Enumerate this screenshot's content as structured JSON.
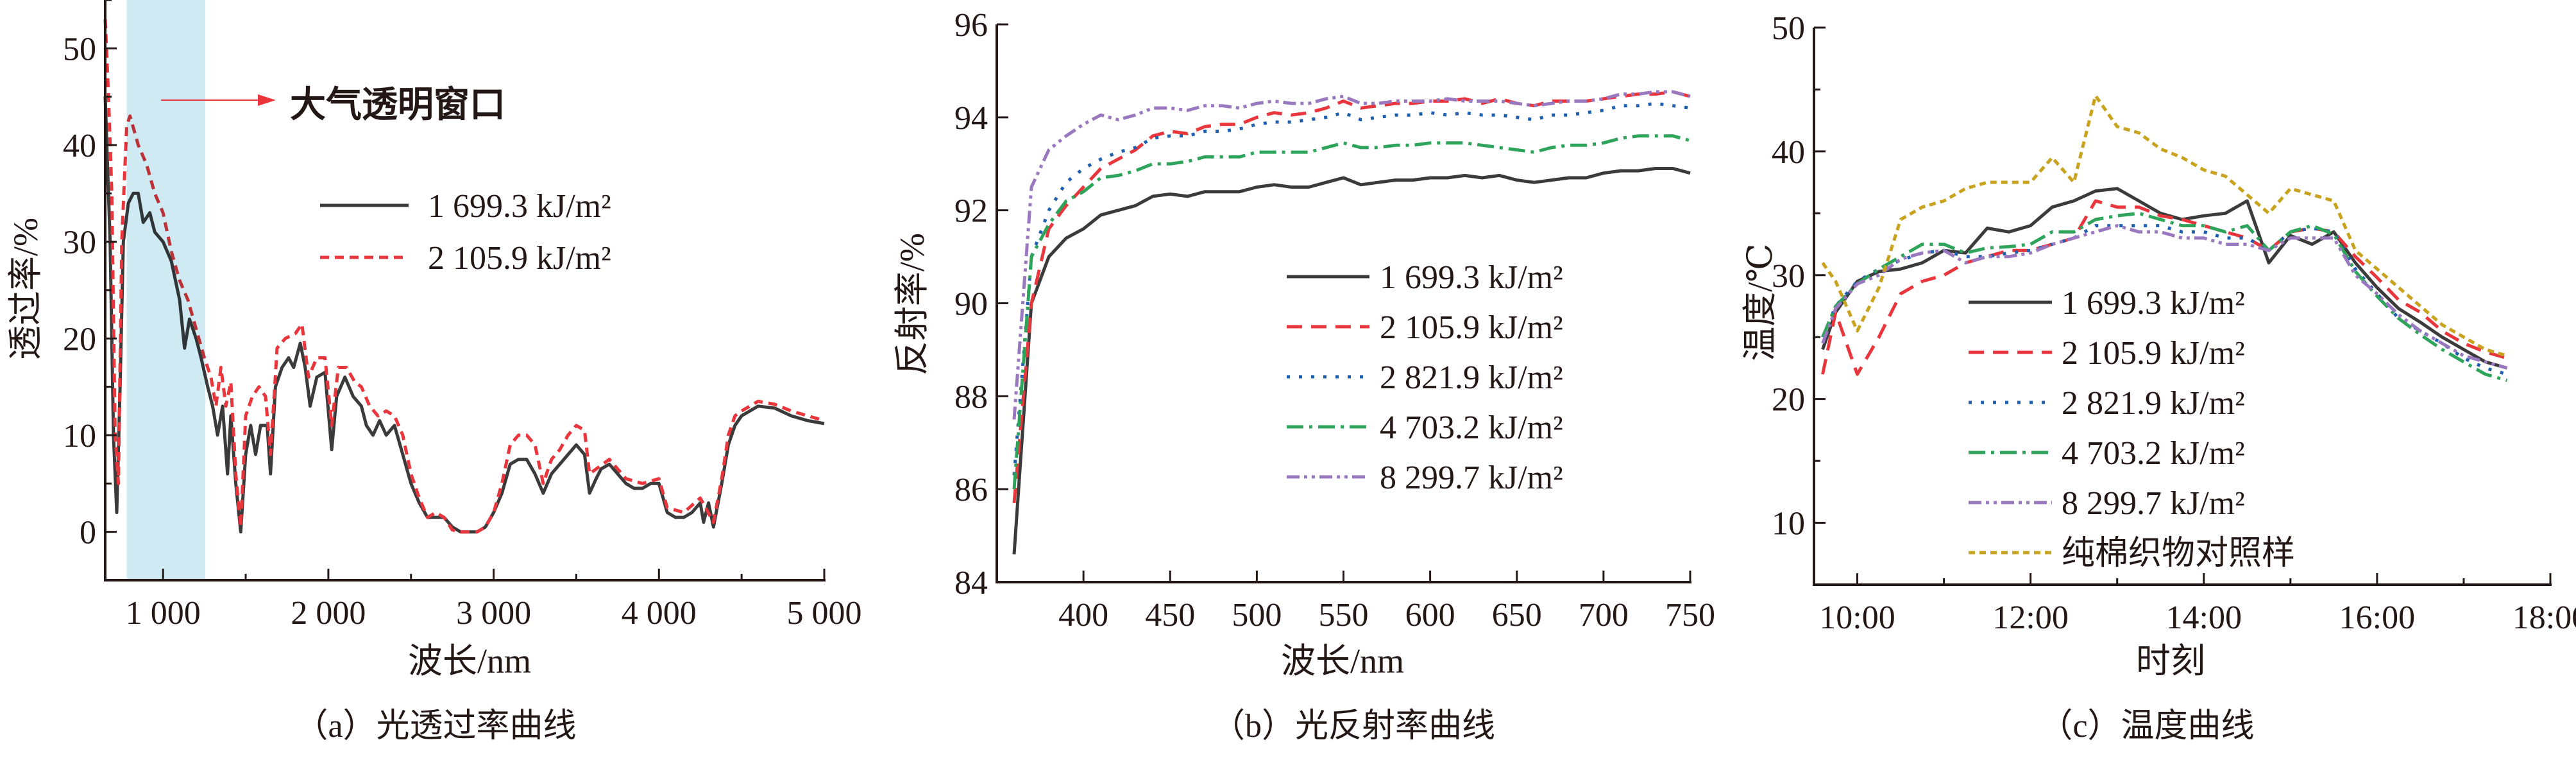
{
  "chart_data": [
    {
      "type": "line",
      "caption": "（a）光透过率曲线",
      "xlabel": "波长/nm",
      "ylabel": "透过率/%",
      "xlim": [
        650,
        5000
      ],
      "ylim": [
        -5,
        55
      ],
      "xticks": [
        1000,
        2000,
        3000,
        4000,
        5000
      ],
      "xtick_labels": [
        "1 000",
        "2 000",
        "3 000",
        "4 000",
        "5 000"
      ],
      "yticks": [
        0,
        10,
        20,
        30,
        40,
        50
      ],
      "ytick_labels": [
        "0",
        "10",
        "20",
        "30",
        "40",
        "50"
      ],
      "highlight_band": {
        "range": [
          780,
          1256
        ],
        "label": "大气透明窗口",
        "color": "#cfeaf2"
      },
      "legend_position": "center-right",
      "series": [
        {
          "name": "1 699.3 kJ/m²",
          "color": "#3b3b3b",
          "style": "solid",
          "x": [
            650,
            680,
            700,
            720,
            740,
            760,
            790,
            820,
            850,
            880,
            920,
            950,
            1000,
            1050,
            1100,
            1130,
            1160,
            1200,
            1230,
            1270,
            1300,
            1330,
            1360,
            1390,
            1410,
            1440,
            1470,
            1500,
            1530,
            1560,
            1590,
            1630,
            1650,
            1680,
            1720,
            1760,
            1790,
            1830,
            1860,
            1890,
            1930,
            1980,
            2020,
            2050,
            2100,
            2150,
            2200,
            2230,
            2270,
            2310,
            2350,
            2400,
            2450,
            2500,
            2550,
            2600,
            2650,
            2700,
            2750,
            2800,
            2900,
            2950,
            3000,
            3050,
            3100,
            3150,
            3200,
            3250,
            3300,
            3350,
            3400,
            3450,
            3500,
            3550,
            3580,
            3620,
            3650,
            3700,
            3750,
            3800,
            3850,
            3900,
            3950,
            4000,
            4050,
            4100,
            4150,
            4200,
            4250,
            4270,
            4300,
            4330,
            4380,
            4420,
            4460,
            4500,
            4600,
            4700,
            4800,
            4900,
            5000
          ],
          "y": [
            45,
            30,
            10,
            2,
            15,
            30,
            34,
            35,
            35,
            32,
            33,
            31,
            30,
            28,
            24,
            19,
            22,
            20,
            18,
            15,
            13,
            10,
            13,
            6,
            12,
            5,
            0,
            8,
            11,
            8,
            11,
            11,
            6,
            15,
            17,
            18,
            17,
            19.5,
            17,
            13,
            16,
            16.5,
            8.5,
            14,
            16,
            14,
            13,
            11,
            10,
            11.5,
            10,
            11,
            8,
            5,
            3,
            1.5,
            1.5,
            1.5,
            0.5,
            0,
            0,
            0.5,
            2,
            4,
            7,
            7.5,
            7.5,
            6,
            4,
            6,
            7,
            8,
            9,
            8,
            4,
            5.5,
            6.5,
            7,
            6,
            5,
            4.5,
            4.5,
            5,
            5,
            2,
            1.5,
            1.5,
            2,
            3,
            1,
            3,
            0.5,
            5,
            9,
            11,
            12,
            13,
            12.8,
            12,
            11.5,
            11.2
          ]
        },
        {
          "name": "2 105.9 kJ/m²",
          "color": "#e8363c",
          "style": "dashed",
          "x": [
            650,
            670,
            690,
            710,
            730,
            750,
            780,
            800,
            850,
            900,
            950,
            1000,
            1050,
            1100,
            1150,
            1200,
            1250,
            1290,
            1320,
            1350,
            1380,
            1410,
            1440,
            1470,
            1500,
            1540,
            1580,
            1620,
            1650,
            1690,
            1740,
            1800,
            1840,
            1880,
            1930,
            1980,
            2020,
            2060,
            2110,
            2160,
            2200,
            2250,
            2300,
            2350,
            2400,
            2450,
            2500,
            2550,
            2600,
            2650,
            2700,
            2750,
            2800,
            2900,
            2950,
            3000,
            3050,
            3100,
            3150,
            3200,
            3250,
            3300,
            3350,
            3400,
            3450,
            3500,
            3550,
            3580,
            3620,
            3700,
            3800,
            3900,
            4000,
            4050,
            4150,
            4250,
            4330,
            4380,
            4420,
            4460,
            4500,
            4600,
            4700,
            4800,
            4900,
            5000
          ],
          "y": [
            53,
            45,
            35,
            10,
            5,
            30,
            42,
            43,
            40,
            38,
            35,
            33,
            29,
            26,
            24,
            21,
            18,
            16,
            13,
            17,
            13,
            15.5,
            6,
            0.5,
            12,
            14,
            15,
            14,
            8,
            19,
            20,
            20.5,
            21.5,
            16,
            18,
            18,
            11,
            17,
            17,
            15.5,
            15,
            13,
            12,
            12.5,
            12,
            10,
            6,
            3.5,
            1.5,
            2,
            1.5,
            0.2,
            0,
            0,
            0.5,
            2,
            5,
            9,
            10,
            10,
            9,
            5,
            7.5,
            8.5,
            10,
            11,
            10.5,
            6,
            6.5,
            7.5,
            5.5,
            5,
            5.5,
            2.5,
            2,
            3.5,
            1,
            5.5,
            10,
            12,
            12.5,
            13.5,
            13.2,
            12.5,
            12,
            11.5
          ]
        }
      ]
    },
    {
      "type": "line",
      "caption": "（b）光反射率曲线",
      "xlabel": "波长/nm",
      "ylabel": "反射率/%",
      "xlim": [
        350,
        750
      ],
      "ylim": [
        84,
        96
      ],
      "xticks": [
        400,
        450,
        500,
        550,
        600,
        650,
        700,
        750
      ],
      "xtick_labels": [
        "400",
        "450",
        "500",
        "550",
        "600",
        "650",
        "700",
        "750"
      ],
      "yticks": [
        84,
        86,
        88,
        90,
        92,
        94,
        96
      ],
      "ytick_labels": [
        "84",
        "86",
        "88",
        "90",
        "92",
        "94",
        "96"
      ],
      "legend_position": "center-right",
      "x": [
        360,
        370,
        380,
        390,
        400,
        410,
        420,
        430,
        440,
        450,
        460,
        470,
        480,
        490,
        500,
        510,
        520,
        530,
        540,
        550,
        560,
        570,
        580,
        590,
        600,
        610,
        620,
        630,
        640,
        650,
        660,
        670,
        680,
        690,
        700,
        710,
        720,
        730,
        740,
        750
      ],
      "series": [
        {
          "name": "1 699.3 kJ/m²",
          "color": "#3b3b3b",
          "style": "solid",
          "y": [
            84.6,
            90,
            91,
            91.4,
            91.6,
            91.9,
            92,
            92.1,
            92.3,
            92.35,
            92.3,
            92.4,
            92.4,
            92.4,
            92.5,
            92.55,
            92.5,
            92.5,
            92.6,
            92.7,
            92.55,
            92.6,
            92.65,
            92.65,
            92.7,
            92.7,
            92.75,
            92.7,
            92.75,
            92.65,
            92.6,
            92.65,
            92.7,
            92.7,
            92.8,
            92.85,
            92.85,
            92.9,
            92.9,
            92.8
          ]
        },
        {
          "name": "2 105.9 kJ/m²",
          "color": "#e8363c",
          "style": "dashed",
          "y": [
            85.7,
            90,
            91.6,
            92.1,
            92.5,
            92.9,
            93.1,
            93.3,
            93.6,
            93.7,
            93.65,
            93.8,
            93.85,
            93.85,
            94,
            94.1,
            94.05,
            94.1,
            94.2,
            94.35,
            94.2,
            94.25,
            94.3,
            94.3,
            94.35,
            94.35,
            94.4,
            94.3,
            94.4,
            94.3,
            94.25,
            94.35,
            94.35,
            94.35,
            94.4,
            94.45,
            94.5,
            94.5,
            94.55,
            94.45
          ]
        },
        {
          "name": "2 821.9 kJ/m²",
          "color": "#1f5fb0",
          "style": "dotted",
          "y": [
            86.3,
            91,
            92,
            92.6,
            92.9,
            93.1,
            93.25,
            93.35,
            93.55,
            93.6,
            93.6,
            93.7,
            93.7,
            93.75,
            93.85,
            93.9,
            93.9,
            93.95,
            94,
            94.1,
            93.95,
            94,
            94.05,
            94.05,
            94.1,
            94.05,
            94.1,
            94.05,
            94.05,
            94,
            93.95,
            94.05,
            94.05,
            94.1,
            94.15,
            94.25,
            94.25,
            94.3,
            94.25,
            94.2
          ]
        },
        {
          "name": "4 703.2 kJ/m²",
          "color": "#2ea35a",
          "style": "dash-dot",
          "y": [
            86,
            91,
            91.7,
            92.2,
            92.4,
            92.7,
            92.75,
            92.85,
            93,
            93,
            93.05,
            93.15,
            93.15,
            93.15,
            93.25,
            93.25,
            93.25,
            93.25,
            93.35,
            93.45,
            93.35,
            93.35,
            93.4,
            93.4,
            93.45,
            93.45,
            93.45,
            93.4,
            93.35,
            93.3,
            93.25,
            93.35,
            93.4,
            93.4,
            93.45,
            93.55,
            93.6,
            93.6,
            93.6,
            93.5
          ]
        },
        {
          "name": "8 299.7 kJ/m²",
          "color": "#9a78c0",
          "style": "dash-dot-dot",
          "y": [
            87.5,
            92.5,
            93.3,
            93.6,
            93.85,
            94.05,
            93.95,
            94.05,
            94.2,
            94.2,
            94.15,
            94.25,
            94.25,
            94.2,
            94.3,
            94.35,
            94.3,
            94.3,
            94.4,
            94.45,
            94.3,
            94.3,
            94.35,
            94.35,
            94.35,
            94.4,
            94.35,
            94.35,
            94.35,
            94.3,
            94.25,
            94.3,
            94.35,
            94.35,
            94.4,
            94.5,
            94.5,
            94.55,
            94.55,
            94.45
          ]
        }
      ]
    },
    {
      "type": "line",
      "caption": "（c）温度曲线",
      "xlabel": "时刻",
      "ylabel": "温度/℃",
      "xlim": [
        9.5,
        18
      ],
      "ylim": [
        5,
        50
      ],
      "xticks": [
        10,
        12,
        14,
        16,
        18
      ],
      "xtick_labels": [
        "10:00",
        "12:00",
        "14:00",
        "16:00",
        "18:00"
      ],
      "yticks": [
        10,
        20,
        30,
        40,
        50
      ],
      "ytick_labels": [
        "10",
        "20",
        "30",
        "40",
        "50"
      ],
      "legend_position": "bottom-center",
      "x": [
        9.6,
        9.75,
        10,
        10.25,
        10.5,
        10.75,
        11,
        11.25,
        11.5,
        11.75,
        12,
        12.25,
        12.5,
        12.75,
        13,
        13.25,
        13.5,
        13.75,
        14,
        14.25,
        14.5,
        14.75,
        15,
        15.25,
        15.5,
        15.75,
        16,
        16.25,
        16.5,
        16.75,
        17,
        17.25,
        17.5
      ],
      "series": [
        {
          "name": "1 699.3 kJ/m²",
          "color": "#3b3b3b",
          "style": "solid",
          "y": [
            24,
            27,
            29.5,
            30.3,
            30.5,
            31,
            32,
            31.8,
            33.8,
            33.5,
            34,
            35.5,
            36,
            36.8,
            37,
            36,
            35,
            34.5,
            34.8,
            35,
            36,
            31,
            33.2,
            32.5,
            33.5,
            31,
            29,
            27.3,
            26.2,
            25,
            24,
            23,
            22.5
          ]
        },
        {
          "name": "2 105.9 kJ/m²",
          "color": "#e8363c",
          "style": "dashed",
          "y": [
            22,
            27,
            22,
            25,
            28.5,
            29.5,
            30,
            31,
            31.5,
            32,
            32,
            32.5,
            33,
            36,
            35.5,
            35.5,
            34.8,
            34.5,
            34,
            33.5,
            33,
            32,
            33.5,
            33.8,
            33.5,
            31.5,
            29.8,
            28,
            27,
            25.5,
            24.5,
            23.8,
            23.3
          ]
        },
        {
          "name": "2 821.9 kJ/m²",
          "color": "#1f5fb0",
          "style": "dotted",
          "y": [
            25,
            27.5,
            29.5,
            30.5,
            31.2,
            31.8,
            32,
            31.5,
            31.5,
            31.8,
            32,
            32.5,
            33,
            34,
            34,
            34,
            34,
            33.5,
            33.5,
            33,
            33,
            32,
            33.5,
            33.8,
            33.5,
            30.5,
            28.5,
            26.5,
            25.5,
            24.5,
            23.3,
            22.5,
            22
          ]
        },
        {
          "name": "4 703.2 kJ/m²",
          "color": "#2ea35a",
          "style": "dash-dot",
          "y": [
            25,
            27.5,
            29.3,
            30.5,
            31.5,
            32.5,
            32.5,
            31.8,
            32.2,
            32.3,
            32.5,
            33.5,
            33.5,
            34.5,
            34.8,
            35,
            34.5,
            34,
            34,
            33.5,
            34,
            32,
            33.5,
            34,
            33.3,
            30.3,
            28.3,
            26.5,
            25.2,
            24,
            23,
            22,
            21.5
          ]
        },
        {
          "name": "8 299.7 kJ/m²",
          "color": "#9a78c0",
          "style": "dash-dot-dot",
          "y": [
            24.5,
            27.3,
            29.3,
            30,
            31.3,
            31.8,
            32,
            31,
            31.5,
            31.5,
            31.8,
            32.5,
            33,
            33.5,
            34,
            33.5,
            33.5,
            33,
            33,
            32.5,
            32.5,
            32,
            33,
            33,
            33,
            30,
            28.5,
            26.8,
            25.5,
            24.5,
            23.5,
            23,
            22.5
          ]
        },
        {
          "name": "纯棉织物对照样",
          "color": "#c9a21e",
          "style": "short-dash",
          "y": [
            31,
            29.5,
            25.5,
            29,
            34.5,
            35.5,
            36,
            37,
            37.5,
            37.5,
            37.5,
            39.5,
            37.5,
            44.5,
            42,
            41.5,
            40.2,
            39.5,
            38.5,
            38,
            36.5,
            35,
            37,
            36.5,
            36,
            32,
            30.5,
            29,
            27.5,
            26,
            25,
            24,
            23.5
          ]
        }
      ]
    }
  ]
}
